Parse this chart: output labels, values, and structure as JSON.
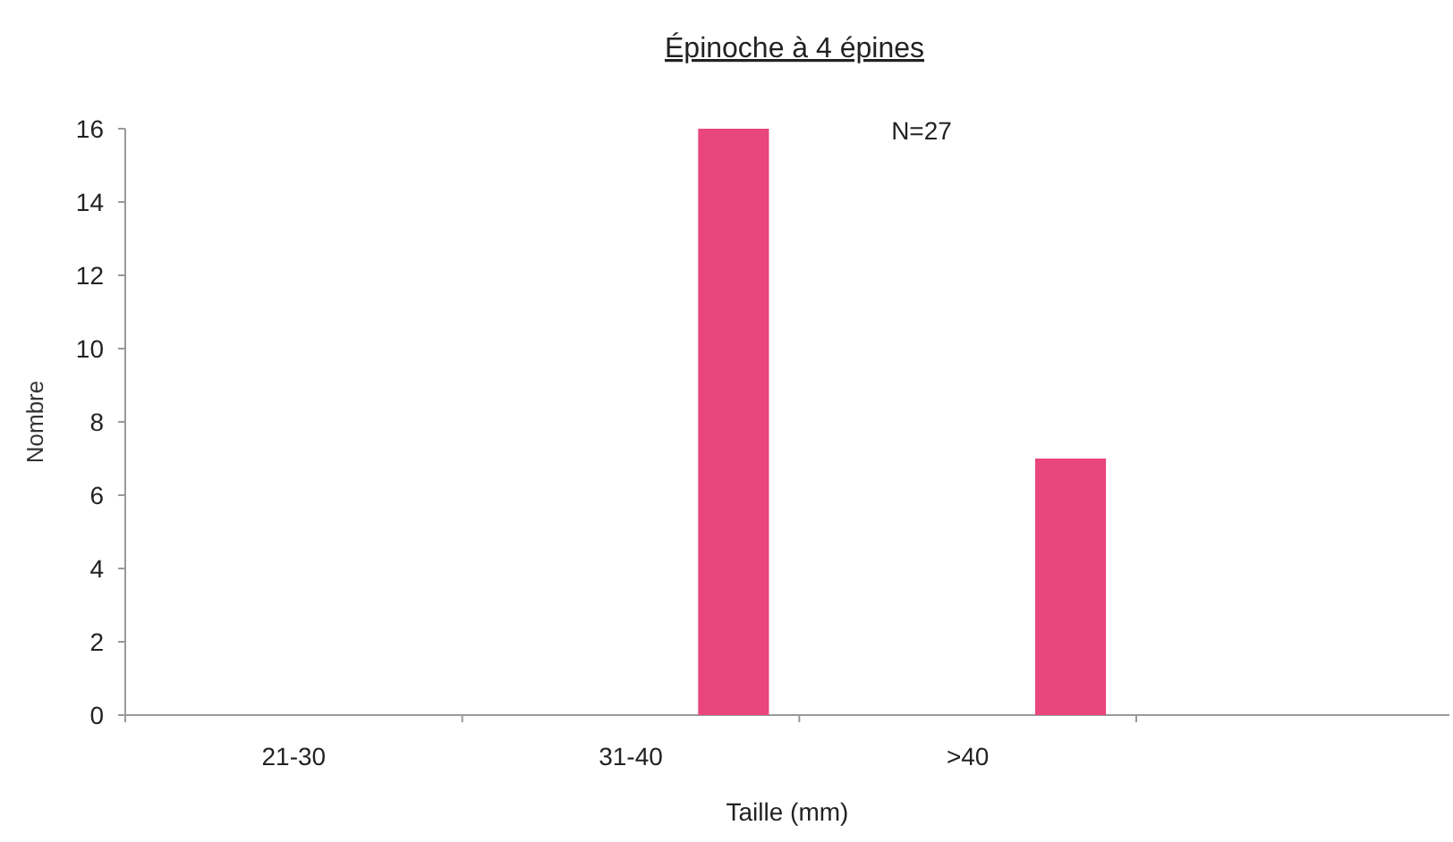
{
  "chart_data": {
    "type": "bar",
    "title": "Épinoche à 4 épines",
    "xlabel": "Taille (mm)",
    "ylabel": "Nombre",
    "categories": [
      "21-30",
      "31-40",
      ">40"
    ],
    "values": [
      0,
      16,
      7
    ],
    "color": "#e8467c",
    "ylim": [
      0,
      16
    ],
    "yticks": [
      0,
      2,
      4,
      6,
      8,
      10,
      12,
      14,
      16
    ],
    "grid": false,
    "annotations": [
      "N=27"
    ]
  }
}
